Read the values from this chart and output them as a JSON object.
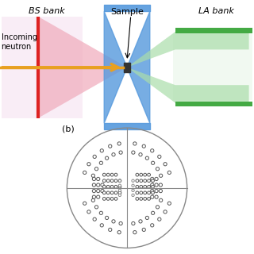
{
  "bg_color": "#ffffff",
  "top_panel": {
    "bs_bank_label": "BS bank",
    "la_bank_label": "LA bank",
    "sample_label": "Sample",
    "neutron_label": "Incoming\nneutron",
    "arrow_color": "#E8A020",
    "red_line_color": "#DD2222",
    "blue_hourglass_color": "#5599DD",
    "pink_fan_color": "#F0AABB",
    "green_bar_color": "#44AA44",
    "green_fan_color": "#AADDAA",
    "sample_box_color": "#333333",
    "bs_bg_color": "#F5DDEE",
    "la_bg_color": "#E8F5E8"
  },
  "bottom_panel": {
    "label": "(b)",
    "circle_color": "#888888",
    "dot_edge_color": "#555555"
  }
}
